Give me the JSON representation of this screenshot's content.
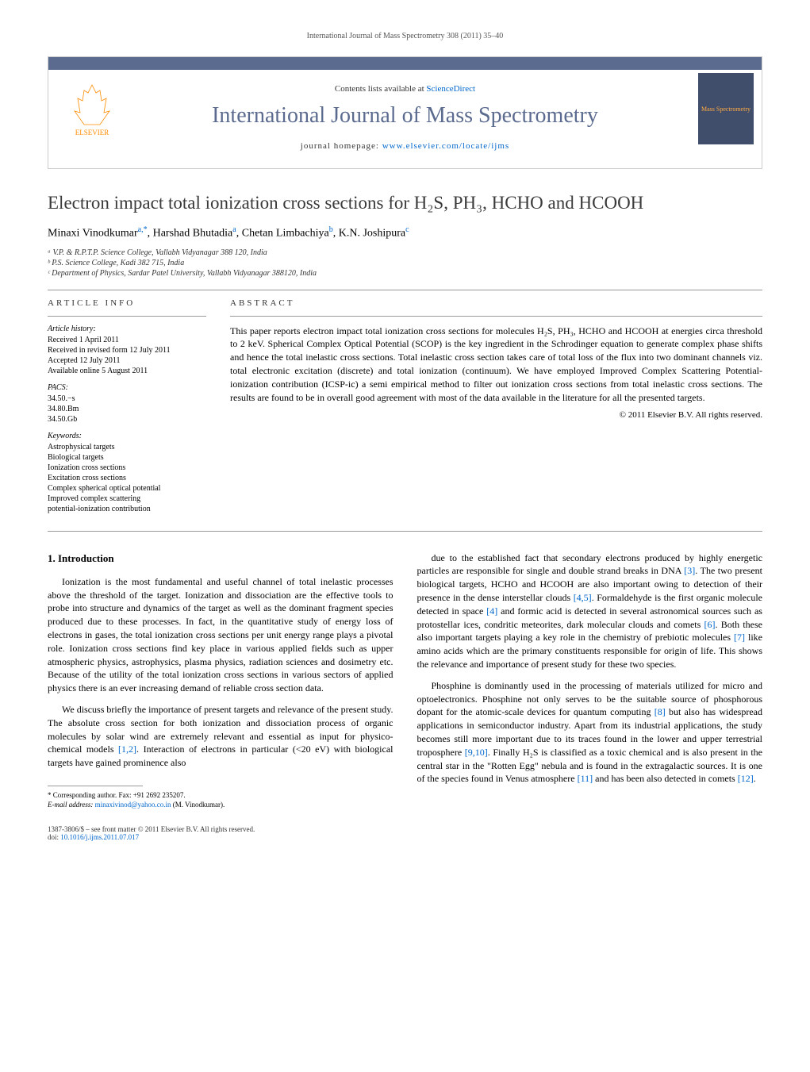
{
  "header_citation": "International Journal of Mass Spectrometry 308 (2011) 35–40",
  "banner": {
    "contents_text": "Contents lists available at ",
    "contents_link": "ScienceDirect",
    "journal_name": "International Journal of Mass Spectrometry",
    "homepage_label": "journal homepage: ",
    "homepage_url": "www.elsevier.com/locate/ijms",
    "left_logo_label": "ELSEVIER",
    "right_logo_label": "Mass Spectrometry"
  },
  "title": "Electron impact total ionization cross sections for H₂S, PH₃, HCHO and HCOOH",
  "authors_html": "Minaxi Vinodkumar<sup>a,*</sup>, Harshad Bhutadia<sup>a</sup>, Chetan Limbachiya<sup>b</sup>, K.N. Joshipura<sup>c</sup>",
  "affiliations": {
    "a": "ᵃ V.P. & R.P.T.P. Science College, Vallabh Vidyanagar 388 120, India",
    "b": "ᵇ P.S. Science College, Kadi 382 715, India",
    "c": "ᶜ Department of Physics, Sardar Patel University, Vallabh Vidyanagar 388120, India"
  },
  "article_info": {
    "heading": "article info",
    "history_heading": "Article history:",
    "history": [
      "Received 1 April 2011",
      "Received in revised form 12 July 2011",
      "Accepted 12 July 2011",
      "Available online 5 August 2011"
    ],
    "pacs_heading": "PACS:",
    "pacs": [
      "34.50.−s",
      "34.80.Bm",
      "34.50.Gb"
    ],
    "keywords_heading": "Keywords:",
    "keywords": [
      "Astrophysical targets",
      "Biological targets",
      "Ionization cross sections",
      "Excitation cross sections",
      "Complex spherical optical potential",
      "Improved complex scattering",
      "potential-ionization contribution"
    ]
  },
  "abstract": {
    "heading": "abstract",
    "text": "This paper reports electron impact total ionization cross sections for molecules H₂S, PH₃, HCHO and HCOOH at energies circa threshold to 2 keV. Spherical Complex Optical Potential (SCOP) is the key ingredient in the Schrodinger equation to generate complex phase shifts and hence the total inelastic cross sections. Total inelastic cross section takes care of total loss of the flux into two dominant channels viz. total electronic excitation (discrete) and total ionization (continuum). We have employed Improved Complex Scattering Potential-ionization contribution (ICSP-ic) a semi empirical method to filter out ionization cross sections from total inelastic cross sections. The results are found to be in overall good agreement with most of the data available in the literature for all the presented targets.",
    "copyright": "© 2011 Elsevier B.V. All rights reserved."
  },
  "body": {
    "section_heading": "1. Introduction",
    "left_paras": [
      "Ionization is the most fundamental and useful channel of total inelastic processes above the threshold of the target. Ionization and dissociation are the effective tools to probe into structure and dynamics of the target as well as the dominant fragment species produced due to these processes. In fact, in the quantitative study of energy loss of electrons in gases, the total ionization cross sections per unit energy range plays a pivotal role. Ionization cross sections find key place in various applied fields such as upper atmospheric physics, astrophysics, plasma physics, radiation sciences and dosimetry etc. Because of the utility of the total ionization cross sections in various sectors of applied physics there is an ever increasing demand of reliable cross section data.",
      "We discuss briefly the importance of present targets and relevance of the present study. The absolute cross section for both ionization and dissociation process of organic molecules by solar wind are extremely relevant and essential as input for physico-chemical models [1,2]. Interaction of electrons in particular (<20 eV) with biological targets have gained prominence also"
    ],
    "right_paras": [
      "due to the established fact that secondary electrons produced by highly energetic particles are responsible for single and double strand breaks in DNA [3]. The two present biological targets, HCHO and HCOOH are also important owing to detection of their presence in the dense interstellar clouds [4,5]. Formaldehyde is the first organic molecule detected in space [4] and formic acid is detected in several astronomical sources such as protostellar ices, condritic meteorites, dark molecular clouds and comets [6]. Both these also important targets playing a key role in the chemistry of prebiotic molecules [7] like amino acids which are the primary constituents responsible for origin of life. This shows the relevance and importance of present study for these two species.",
      "Phosphine is dominantly used in the processing of materials utilized for micro and optoelectronics. Phosphine not only serves to be the suitable source of phosphorous dopant for the atomic-scale devices for quantum computing [8] but also has widespread applications in semiconductor industry. Apart from its industrial applications, the study becomes still more important due to its traces found in the lower and upper terrestrial troposphere [9,10]. Finally H₂S is classified as a toxic chemical and is also present in the central star in the \"Rotten Egg\" nebula and is found in the extragalactic sources. It is one of the species found in Venus atmosphere [11] and has been also detected in comets [12]."
    ]
  },
  "footnote": {
    "corr": "* Corresponding author. Fax: +91 2692 235207.",
    "email_label": "E-mail address: ",
    "email": "minaxivinod@yahoo.co.in",
    "email_suffix": " (M. Vinodkumar)."
  },
  "footer": {
    "left_line1": "1387-3806/$ – see front matter © 2011 Elsevier B.V. All rights reserved.",
    "left_line2_prefix": "doi:",
    "doi": "10.1016/j.ijms.2011.07.017"
  },
  "colors": {
    "link": "#0066cc",
    "banner_bar": "#5b6b8f",
    "journal_title": "#5b6b8f",
    "logo_right_bg": "#404e6b",
    "orange": "#ff8c00"
  }
}
